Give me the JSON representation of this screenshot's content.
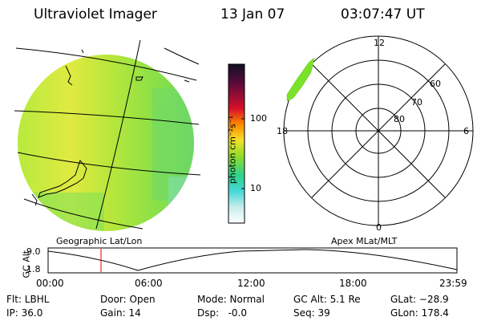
{
  "header": {
    "title": "Ultraviolet Imager",
    "date": "13 Jan 07",
    "time": "03:07:47 UT"
  },
  "colorbar": {
    "label": "photon cm⁻²s⁻¹",
    "ticks": [
      "100",
      "10"
    ]
  },
  "geo_panel": {
    "caption": "Geographic Lat/Lon"
  },
  "polar_panel": {
    "caption": "Apex MLat/MLT",
    "mlt_labels": {
      "top": "12",
      "left": "18",
      "right": "6",
      "bottom": "0"
    },
    "mlat_labels": [
      "60",
      "70",
      "80"
    ]
  },
  "altitude_plot": {
    "ylabel": "GC Alt",
    "yticks": [
      "9.0",
      "1.8"
    ],
    "xticks": [
      "00:00",
      "06:00",
      "12:00",
      "18:00",
      "23:59"
    ],
    "current_time_marker": "03:07"
  },
  "status": {
    "filter": "Flt: LBHL",
    "ip": "IP: 36.0",
    "door": "Door: Open",
    "gain": "Gain: 14",
    "mode": "Mode: Normal",
    "dsp": "Dsp:   -0.0",
    "gc_alt": "GC Alt: 5.1 Re",
    "seq": "Seq: 39",
    "glat": "GLat: −28.9",
    "glon": "GLon: 178.4"
  },
  "colors": {
    "colorbar_stops": [
      "#101020",
      "#5a0a3c",
      "#d8102a",
      "#ff8a00",
      "#f2e12a",
      "#8fdc2a",
      "#2ed28a",
      "#46d8d8",
      "#c8ecec",
      "#ffffff"
    ],
    "disc_fill": "#9be840",
    "disc_warm": "#d8e840",
    "aurora": "#7be22a"
  }
}
